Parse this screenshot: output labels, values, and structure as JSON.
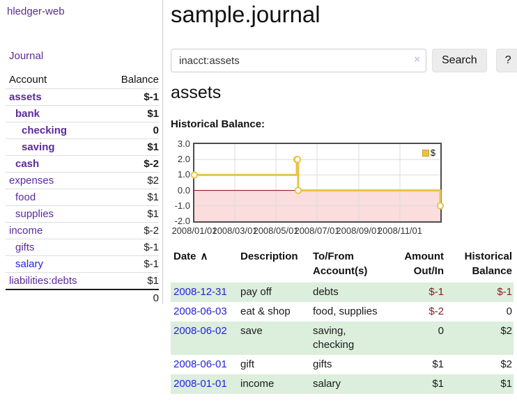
{
  "app": {
    "brand": "hledger-web"
  },
  "sidebar": {
    "journal_label": "Journal",
    "accounts_table": {
      "headers": {
        "account": "Account",
        "balance": "Balance"
      },
      "rows": [
        {
          "name": "assets",
          "balance": "$-1",
          "depth": 1,
          "bold": true,
          "balance_tone": "negative-strong",
          "link_tone": "visited"
        },
        {
          "name": "bank",
          "balance": "$1",
          "depth": 2,
          "bold": true,
          "balance_tone": "normal",
          "link_tone": "visited"
        },
        {
          "name": "checking",
          "balance": "0",
          "depth": 3,
          "bold": true,
          "balance_tone": "normal",
          "link_tone": "visited"
        },
        {
          "name": "saving",
          "balance": "$1",
          "depth": 3,
          "bold": true,
          "balance_tone": "normal",
          "link_tone": "visited"
        },
        {
          "name": "cash",
          "balance": "$-2",
          "depth": 2,
          "bold": true,
          "balance_tone": "negative-strong",
          "link_tone": "visited"
        },
        {
          "name": "expenses",
          "balance": "$2",
          "depth": 1,
          "bold": false,
          "balance_tone": "normal",
          "link_tone": "visited"
        },
        {
          "name": "food",
          "balance": "$1",
          "depth": 2,
          "bold": false,
          "balance_tone": "normal",
          "link_tone": "visited"
        },
        {
          "name": "supplies",
          "balance": "$1",
          "depth": 2,
          "bold": false,
          "balance_tone": "normal",
          "link_tone": "visited"
        },
        {
          "name": "income",
          "balance": "$-2",
          "depth": 1,
          "bold": false,
          "balance_tone": "negative-muted",
          "link_tone": "visited"
        },
        {
          "name": "gifts",
          "balance": "$-1",
          "depth": 2,
          "bold": false,
          "balance_tone": "negative-muted",
          "link_tone": "visited"
        },
        {
          "name": "salary",
          "balance": "$-1",
          "depth": 2,
          "bold": false,
          "balance_tone": "negative-muted",
          "link_tone": "unvisited"
        },
        {
          "name": "liabilities:debts",
          "balance": "$1",
          "depth": 1,
          "bold": false,
          "balance_tone": "normal",
          "link_tone": "visited"
        }
      ],
      "total": "0"
    }
  },
  "main": {
    "title": "sample.journal",
    "search": {
      "value": "inacct:assets",
      "clear_icon": "×",
      "button_label": "Search",
      "help_label": "?"
    },
    "account_heading": "assets"
  },
  "chart_data": {
    "type": "line",
    "step": true,
    "title": "Historical Balance:",
    "series": [
      {
        "name": "$",
        "color": "#e8c34a",
        "points": [
          [
            "2008-01-01",
            1
          ],
          [
            "2008-06-01",
            2
          ],
          [
            "2008-06-02",
            2
          ],
          [
            "2008-06-03",
            0
          ],
          [
            "2008-12-31",
            -1
          ]
        ]
      }
    ],
    "x_range": [
      "2008-01-01",
      "2008-12-31"
    ],
    "x_ticks": [
      "2008/01/01",
      "2008/03/01",
      "2008/05/01",
      "2008/07/01",
      "2008/09/01",
      "2008/11/01"
    ],
    "y_ticks": [
      "3.0",
      "2.0",
      "1.0",
      "0.0",
      "-1.0",
      "-2.0"
    ],
    "ylim": [
      -2,
      3
    ],
    "grid_color": "#dcdcdc",
    "negative_fill": "#fbdddd",
    "zero_line_color": "#8b0000",
    "legend": {
      "label": "$",
      "position": "top-right"
    }
  },
  "transactions": {
    "headers": {
      "date": "Date",
      "sort_icon": "∧",
      "description": "Description",
      "accounts": "To/From Account(s)",
      "amount": "Amount Out/In",
      "balance": "Historical Balance"
    },
    "rows": [
      {
        "date": "2008-12-31",
        "description": "pay off",
        "accounts": "debts",
        "amount": "$-1",
        "amount_negative": true,
        "balance": "$-1",
        "balance_negative": true
      },
      {
        "date": "2008-06-03",
        "description": "eat & shop",
        "accounts": "food, supplies",
        "amount": "$-2",
        "amount_negative": true,
        "balance": "0",
        "balance_negative": false
      },
      {
        "date": "2008-06-02",
        "description": "save",
        "accounts": "saving, checking",
        "amount": "0",
        "amount_negative": false,
        "balance": "$2",
        "balance_negative": false
      },
      {
        "date": "2008-06-01",
        "description": "gift",
        "accounts": "gifts",
        "amount": "$1",
        "amount_negative": false,
        "balance": "$2",
        "balance_negative": false
      },
      {
        "date": "2008-01-01",
        "description": "income",
        "accounts": "salary",
        "amount": "$1",
        "amount_negative": false,
        "balance": "$1",
        "balance_negative": false
      }
    ]
  }
}
